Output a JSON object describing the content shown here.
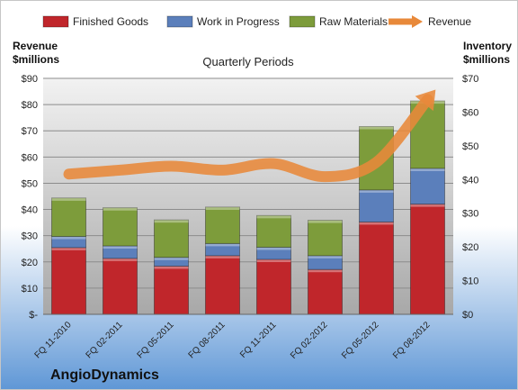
{
  "company": "AngioDynamics",
  "chart_data": {
    "type": "bar",
    "title": "Quarterly Periods",
    "left_axis_label": [
      "Revenue",
      "$millions"
    ],
    "right_axis_label": [
      "Inventory",
      "$millions"
    ],
    "categories": [
      "FQ 11-2010",
      "FQ 02-2011",
      "FQ 05-2011",
      "FQ 08-2011",
      "FQ 11-2011",
      "FQ 02-2012",
      "FQ 05-2012",
      "FQ 08-2012"
    ],
    "stacked": true,
    "left_axis": {
      "min": 0,
      "max": 90,
      "step": 10,
      "tick_labels": [
        "$-",
        "$10",
        "$20",
        "$30",
        "$40",
        "$50",
        "$60",
        "$70",
        "$80",
        "$90"
      ]
    },
    "right_axis": {
      "min": 0,
      "max": 70,
      "step": 10,
      "tick_labels": [
        "$0",
        "$10",
        "$20",
        "$30",
        "$40",
        "$50",
        "$60",
        "$70"
      ]
    },
    "series": [
      {
        "name": "Finished Goods",
        "axis": "right",
        "color": "#c0262b",
        "values": [
          19.8,
          16.6,
          14.3,
          17.4,
          16.3,
          13.3,
          27.4,
          32.7
        ]
      },
      {
        "name": "Work in Progress",
        "axis": "right",
        "color": "#5b7fbb",
        "values": [
          3.3,
          3.7,
          2.6,
          3.6,
          3.6,
          4.1,
          9.5,
          10.6
        ]
      },
      {
        "name": "Raw Materials",
        "axis": "right",
        "color": "#7d9c3b",
        "values": [
          11.4,
          11.3,
          11.1,
          10.8,
          9.4,
          10.5,
          18.8,
          20.0
        ]
      },
      {
        "name": "Revenue",
        "axis": "left",
        "type": "line",
        "color": "#e8893a",
        "values": [
          53.5,
          55.0,
          56.5,
          55.0,
          57.5,
          52.5,
          58.0,
          82.0
        ]
      }
    ],
    "legend_position": "top",
    "grid": true
  }
}
